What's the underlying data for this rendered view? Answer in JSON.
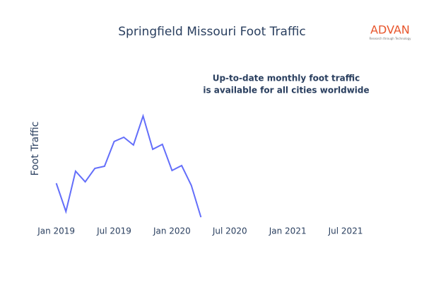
{
  "chart_data": {
    "type": "line",
    "title": "Springfield Missouri Foot Traffic",
    "ylabel": "Foot Traffic",
    "annotation": [
      "Up-to-date monthly foot traffic",
      "is available for all cities worldwide"
    ],
    "logo": {
      "name": "ADVAN",
      "tagline": "Research through Technology"
    },
    "x": [
      "2019-01",
      "2019-02",
      "2019-03",
      "2019-04",
      "2019-05",
      "2019-06",
      "2019-07",
      "2019-08",
      "2019-09",
      "2019-10",
      "2019-11",
      "2019-12",
      "2020-01",
      "2020-02",
      "2020-03",
      "2020-04"
    ],
    "series": [
      {
        "name": "Foot Traffic",
        "color": "#636efa",
        "values": [
          51,
          11,
          68,
          53,
          72,
          75,
          110,
          116,
          105,
          146,
          99,
          106,
          69,
          76,
          48,
          3
        ]
      }
    ],
    "xlim": [
      "2018-12",
      "2021-10"
    ],
    "xticks": [
      {
        "value": "2019-01",
        "label": "Jan 2019"
      },
      {
        "value": "2019-07",
        "label": "Jul 2019"
      },
      {
        "value": "2020-01",
        "label": "Jan 2020"
      },
      {
        "value": "2020-07",
        "label": "Jul 2020"
      },
      {
        "value": "2021-01",
        "label": "Jan 2021"
      },
      {
        "value": "2021-07",
        "label": "Jul 2021"
      }
    ],
    "ylim": [
      0,
      160
    ]
  }
}
